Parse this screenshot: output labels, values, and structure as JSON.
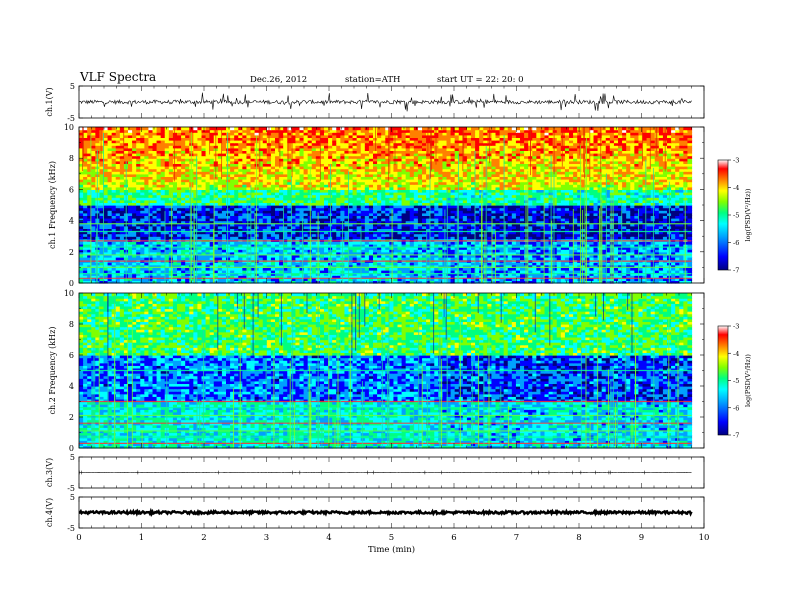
{
  "header": {
    "title": "VLF Spectra",
    "date": "Dec.26, 2012",
    "station": "station=ATH",
    "start": "start  UT =   22: 20: 0"
  },
  "chart_data": [
    {
      "type": "line",
      "name": "waveform-ch1",
      "ylabel": "ch.1(V)",
      "ylim": [
        -5,
        5
      ],
      "yticks": [
        5,
        -5
      ],
      "xlim": [
        0,
        10
      ],
      "trend": "noisy waveform near 0 V with frequent spikes up to about ±3 V over 0–9.8 min"
    },
    {
      "type": "heatmap",
      "name": "spectrogram-ch1",
      "ylabel": "ch.1 Frequency (kHz)",
      "ylim": [
        0,
        10
      ],
      "yticks": [
        0,
        2,
        4,
        6,
        8,
        10
      ],
      "xlim": [
        0,
        10
      ],
      "data_end_min": 9.8,
      "colorbar": {
        "label": "log(PSD(V²/Hz))",
        "range": [
          -7,
          -3
        ],
        "ticks": [
          -3,
          -4,
          -5,
          -6,
          -7
        ]
      },
      "description": "high PSD (yellow–red) above ~6 kHz, low PSD (dark blue) around 3–5 kHz, horizontal narrowband lines below 3 kHz, vertical sferic streaks throughout"
    },
    {
      "type": "heatmap",
      "name": "spectrogram-ch2",
      "ylabel": "ch.2 Frequency (kHz)",
      "ylim": [
        0,
        10
      ],
      "yticks": [
        0,
        2,
        4,
        6,
        8,
        10
      ],
      "xlim": [
        0,
        10
      ],
      "data_end_min": 9.8,
      "colorbar": {
        "label": "log(PSD(V²/Hz))",
        "range": [
          -7,
          -3
        ],
        "ticks": [
          -3,
          -4,
          -5,
          -6,
          -7
        ]
      },
      "description": "mostly green/cyan (-5 to -6), blue band 3–6 kHz, vertical streaks"
    },
    {
      "type": "line",
      "name": "waveform-ch3",
      "ylabel": "ch.3(V)",
      "ylim": [
        -5,
        5
      ],
      "yticks": [
        5,
        -5
      ],
      "xlim": [
        0,
        10
      ],
      "trend": "flat near 0 V"
    },
    {
      "type": "line",
      "name": "waveform-ch4",
      "ylabel": "ch.4(V)",
      "ylim": [
        -5,
        5
      ],
      "yticks": [
        5,
        -5
      ],
      "xlim": [
        0,
        10
      ],
      "trend": "thick flat band near 0 V"
    }
  ],
  "xaxis": {
    "label": "Time  (min)",
    "ticks": [
      0,
      1,
      2,
      3,
      4,
      5,
      6,
      7,
      8,
      9,
      10
    ]
  },
  "colors": {
    "colormap": [
      "#000080",
      "#0000ff",
      "#00a0ff",
      "#00ffff",
      "#00ff80",
      "#80ff00",
      "#ffff00",
      "#ff8000",
      "#ff0000",
      "#ffffff"
    ]
  }
}
